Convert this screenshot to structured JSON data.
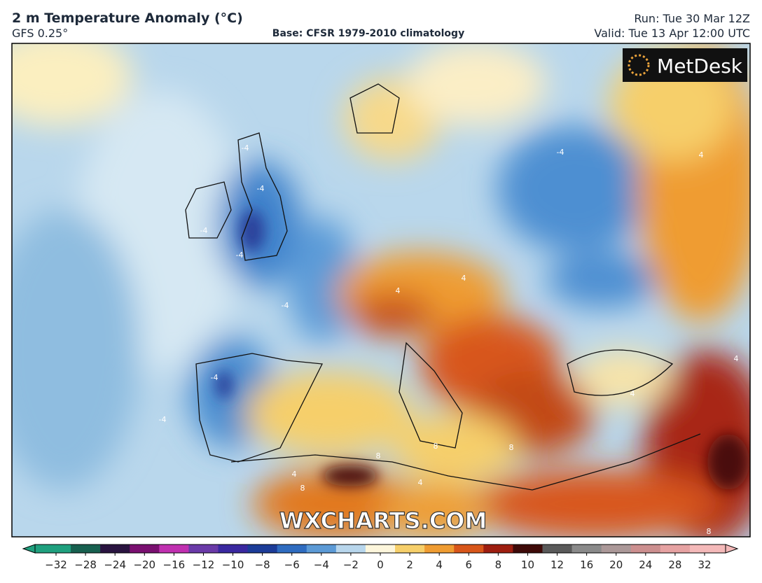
{
  "header": {
    "title": "2 m Temperature Anomaly (°C)",
    "model": "GFS 0.25°",
    "base": "Base: CFSR 1979-2010 climatology",
    "run": "Run: Tue 30 Mar 12Z",
    "valid": "Valid: Tue 13 Apr 12:00 UTC"
  },
  "map": {
    "logo": "MetDesk",
    "watermark": "WXCHARTS.COM",
    "contour_labels": [
      "-4",
      "-4",
      "-4",
      "-4",
      "-4",
      "-4",
      "-4",
      "-4",
      "4",
      "4",
      "4",
      "4",
      "4",
      "4",
      "4",
      "8",
      "8",
      "8",
      "8",
      "8"
    ]
  },
  "colorbar": {
    "ticks": [
      {
        "value": -32,
        "label": "−32"
      },
      {
        "value": -28,
        "label": "−28"
      },
      {
        "value": -24,
        "label": "−24"
      },
      {
        "value": -20,
        "label": "−20"
      },
      {
        "value": -16,
        "label": "−16"
      },
      {
        "value": -12,
        "label": "−12"
      },
      {
        "value": -10,
        "label": "−10"
      },
      {
        "value": -8,
        "label": "−8"
      },
      {
        "value": -6,
        "label": "−6"
      },
      {
        "value": -4,
        "label": "−4"
      },
      {
        "value": -2,
        "label": "−2"
      },
      0,
      2,
      4,
      6,
      8,
      10,
      12,
      16,
      20,
      24,
      28,
      32
    ],
    "colors": [
      "#1fa07e",
      "#17604f",
      "#2a1440",
      "#7a1070",
      "#c030b0",
      "#6a3aa8",
      "#3a28a0",
      "#1c3c98",
      "#2f6cc0",
      "#5c9ad6",
      "#b8d6ec",
      "#fdf6dc",
      "#f6cf6a",
      "#ef9c32",
      "#d8561a",
      "#9e1e10",
      "#3e0a08",
      "#5a5a5a",
      "#8a8a8a",
      "#ab9898",
      "#cc8f8f",
      "#e6a2a2",
      "#f4b9b9"
    ]
  }
}
